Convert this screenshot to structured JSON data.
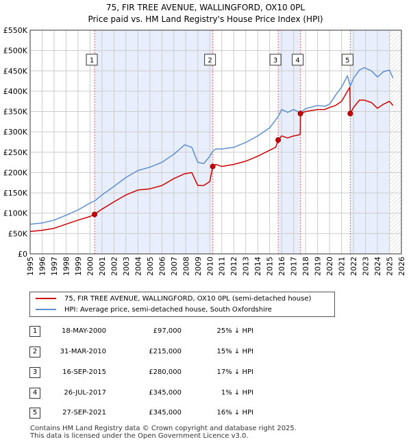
{
  "title_line1": "75, FIR TREE AVENUE, WALLINGFORD, OX10 0PL",
  "title_line2": "Price paid vs. HM Land Registry's House Price Index (HPI)",
  "colors": {
    "red": "#cc0000",
    "blue": "#5b8fd0",
    "shade": "#e8eefb",
    "grid": "#cccccc",
    "vline": "#e06060"
  },
  "chart_data": {
    "type": "line",
    "title": "75, FIR TREE AVENUE, WALLINGFORD, OX10 0PL — Price paid vs. HM Land Registry's House Price Index (HPI)",
    "xlim": [
      1995,
      2026
    ],
    "ylim": [
      0,
      550000
    ],
    "x_ticks": [
      1995,
      1996,
      1997,
      1998,
      1999,
      2000,
      2001,
      2002,
      2003,
      2004,
      2005,
      2006,
      2007,
      2008,
      2009,
      2010,
      2011,
      2012,
      2013,
      2014,
      2015,
      2016,
      2017,
      2018,
      2019,
      2020,
      2021,
      2022,
      2023,
      2024,
      2025,
      2026
    ],
    "y_ticks": [
      0,
      50000,
      100000,
      150000,
      200000,
      250000,
      300000,
      350000,
      400000,
      450000,
      500000,
      550000
    ],
    "y_tick_labels": [
      "£0",
      "£50K",
      "£100K",
      "£150K",
      "£200K",
      "£250K",
      "£300K",
      "£350K",
      "£400K",
      "£450K",
      "£500K",
      "£550K"
    ],
    "series": [
      {
        "name": "75, FIR TREE AVENUE, WALLINGFORD, OX10 0PL (semi-detached house)",
        "color": "#cc0000",
        "x": [
          1995,
          1996,
          1997,
          1998,
          1999,
          2000.0,
          2000.38,
          2000.5,
          2001,
          2002,
          2003,
          2004,
          2005,
          2006,
          2007,
          2007.9,
          2008.5,
          2009,
          2009.5,
          2010.0,
          2010.25,
          2010.5,
          2011,
          2012,
          2013,
          2014,
          2015,
          2015.5,
          2015.71,
          2016,
          2016.5,
          2017,
          2017.4,
          2017.55,
          2017.57,
          2018,
          2019,
          2019.6,
          2020,
          2020.5,
          2021,
          2021.5,
          2021.7,
          2021.73,
          2022,
          2022.5,
          2022.9,
          2023.5,
          2024,
          2024.5,
          2025,
          2025.3
        ],
        "y": [
          55000,
          58000,
          63000,
          73000,
          83000,
          92000,
          97000,
          100000,
          110000,
          128000,
          145000,
          157000,
          160000,
          168000,
          185000,
          197000,
          200000,
          168000,
          168000,
          178000,
          215000,
          220000,
          215000,
          220000,
          228000,
          240000,
          255000,
          262000,
          280000,
          290000,
          285000,
          290000,
          292000,
          295000,
          345000,
          350000,
          355000,
          355000,
          360000,
          365000,
          375000,
          400000,
          410000,
          345000,
          360000,
          378000,
          378000,
          372000,
          358000,
          368000,
          375000,
          365000
        ]
      },
      {
        "name": "HPI: Average price, semi-detached house, South Oxfordshire",
        "color": "#5b8fd0",
        "x": [
          1995,
          1996,
          1997,
          1998,
          1999,
          2000,
          2000.38,
          2001,
          2002,
          2003,
          2004,
          2005,
          2006,
          2007,
          2007.9,
          2008.5,
          2009,
          2009.5,
          2010,
          2010.25,
          2010.5,
          2011,
          2012,
          2013,
          2014,
          2015,
          2015.71,
          2016,
          2016.5,
          2017,
          2017.57,
          2018,
          2019,
          2019.6,
          2020,
          2020.5,
          2021,
          2021.5,
          2021.73,
          2022,
          2022.5,
          2022.9,
          2023.5,
          2024,
          2024.5,
          2025,
          2025.3
        ],
        "y": [
          73000,
          76000,
          83000,
          95000,
          108000,
          125000,
          130000,
          145000,
          166000,
          188000,
          205000,
          213000,
          225000,
          245000,
          268000,
          262000,
          225000,
          222000,
          240000,
          252000,
          258000,
          258000,
          262000,
          274000,
          290000,
          310000,
          338000,
          355000,
          348000,
          355000,
          347000,
          357000,
          365000,
          363000,
          368000,
          390000,
          410000,
          438000,
          412000,
          432000,
          452000,
          458000,
          450000,
          435000,
          448000,
          452000,
          432000
        ]
      }
    ],
    "sales": [
      {
        "n": 1,
        "x": 2000.38,
        "price": 97000
      },
      {
        "n": 2,
        "x": 2010.25,
        "price": 215000
      },
      {
        "n": 3,
        "x": 2015.71,
        "price": 280000
      },
      {
        "n": 4,
        "x": 2017.57,
        "price": 345000
      },
      {
        "n": 5,
        "x": 2021.73,
        "price": 345000
      }
    ],
    "shaded_ranges": [
      [
        2000.38,
        2010.25
      ],
      [
        2015.71,
        2017.57
      ],
      [
        2021.73,
        2025.0
      ]
    ],
    "legend_position": "below-chart"
  },
  "legend": {
    "red_label": "75, FIR TREE AVENUE, WALLINGFORD, OX10 0PL (semi-detached house)",
    "blue_label": "HPI: Average price, semi-detached house, South Oxfordshire"
  },
  "sales_table": [
    {
      "n": "1",
      "date": "18-MAY-2000",
      "price": "£97,000",
      "hpi": "25% ↓ HPI"
    },
    {
      "n": "2",
      "date": "31-MAR-2010",
      "price": "£215,000",
      "hpi": "15% ↓ HPI"
    },
    {
      "n": "3",
      "date": "16-SEP-2015",
      "price": "£280,000",
      "hpi": "17% ↓ HPI"
    },
    {
      "n": "4",
      "date": "26-JUL-2017",
      "price": "£345,000",
      "hpi": "1% ↓ HPI"
    },
    {
      "n": "5",
      "date": "27-SEP-2021",
      "price": "£345,000",
      "hpi": "16% ↓ HPI"
    }
  ],
  "footer": {
    "line1": "Contains HM Land Registry data © Crown copyright and database right 2025.",
    "line2": "This data is licensed under the Open Government Licence v3.0."
  }
}
